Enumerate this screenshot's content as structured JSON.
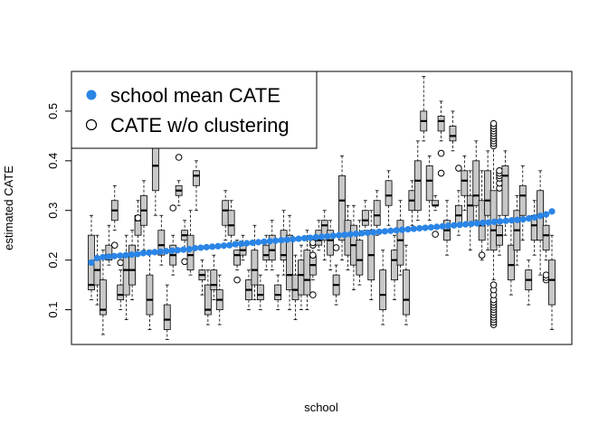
{
  "chart_data": {
    "type": "boxplot",
    "title": "",
    "xlabel": "school",
    "ylabel": "estimated CATE",
    "ylim": [
      0.03,
      0.58
    ],
    "yticks": [
      0.1,
      0.2,
      0.3,
      0.4,
      0.5
    ],
    "ytick_labels": [
      "0.1",
      "0.2",
      "0.3",
      "0.4",
      "0.5"
    ],
    "legend_position": "top-left",
    "colors": {
      "mean_points": "#2a85e6",
      "box_fill": "#c8c8c8",
      "outlier": "#000000"
    },
    "legend": [
      {
        "label": "school mean CATE",
        "marker": "filled-circle"
      },
      {
        "label": "CATE w/o clustering",
        "marker": "open-circle"
      }
    ],
    "series": [
      {
        "name": "school mean CATE",
        "kind": "points",
        "values": [
          0.195,
          0.204,
          0.206,
          0.207,
          0.208,
          0.209,
          0.21,
          0.211,
          0.212,
          0.214,
          0.215,
          0.216,
          0.217,
          0.218,
          0.219,
          0.22,
          0.221,
          0.222,
          0.224,
          0.225,
          0.226,
          0.227,
          0.228,
          0.229,
          0.23,
          0.232,
          0.233,
          0.234,
          0.235,
          0.236,
          0.237,
          0.238,
          0.239,
          0.24,
          0.241,
          0.242,
          0.243,
          0.244,
          0.245,
          0.246,
          0.247,
          0.248,
          0.249,
          0.25,
          0.251,
          0.252,
          0.253,
          0.254,
          0.255,
          0.256,
          0.257,
          0.258,
          0.259,
          0.26,
          0.261,
          0.262,
          0.263,
          0.264,
          0.265,
          0.266,
          0.267,
          0.268,
          0.269,
          0.27,
          0.271,
          0.272,
          0.273,
          0.274,
          0.275,
          0.276,
          0.277,
          0.278,
          0.279,
          0.28,
          0.281,
          0.282,
          0.284,
          0.286,
          0.289,
          0.292,
          0.298
        ]
      },
      {
        "name": "CATE w/o clustering",
        "kind": "boxes",
        "boxes": [
          {
            "min": 0.12,
            "q1": 0.14,
            "median": 0.15,
            "q3": 0.25,
            "max": 0.29,
            "outliers": []
          },
          {
            "min": 0.11,
            "q1": 0.15,
            "median": 0.18,
            "q3": 0.2,
            "max": 0.25,
            "outliers": []
          },
          {
            "min": 0.05,
            "q1": 0.09,
            "median": 0.1,
            "q3": 0.16,
            "max": 0.22,
            "outliers": []
          },
          {
            "min": 0.19,
            "q1": 0.2,
            "median": 0.21,
            "q3": 0.23,
            "max": 0.27,
            "outliers": []
          },
          {
            "min": 0.26,
            "q1": 0.28,
            "median": 0.3,
            "q3": 0.32,
            "max": 0.35,
            "outliers": [
              0.23
            ]
          },
          {
            "min": 0.1,
            "q1": 0.12,
            "median": 0.13,
            "q3": 0.15,
            "max": 0.18,
            "outliers": [
              0.195
            ]
          },
          {
            "min": 0.08,
            "q1": 0.13,
            "median": 0.18,
            "q3": 0.21,
            "max": 0.25,
            "outliers": []
          },
          {
            "min": 0.12,
            "q1": 0.15,
            "median": 0.18,
            "q3": 0.23,
            "max": 0.26,
            "outliers": []
          },
          {
            "min": 0.22,
            "q1": 0.25,
            "median": 0.28,
            "q3": 0.29,
            "max": 0.32,
            "outliers": [
              0.285
            ]
          },
          {
            "min": 0.22,
            "q1": 0.27,
            "median": 0.3,
            "q3": 0.33,
            "max": 0.36,
            "outliers": []
          },
          {
            "min": 0.06,
            "q1": 0.09,
            "median": 0.12,
            "q3": 0.17,
            "max": 0.22,
            "outliers": []
          },
          {
            "min": 0.29,
            "q1": 0.34,
            "median": 0.39,
            "q3": 0.45,
            "max": 0.5,
            "outliers": []
          },
          {
            "min": 0.19,
            "q1": 0.21,
            "median": 0.23,
            "q3": 0.26,
            "max": 0.29,
            "outliers": []
          },
          {
            "min": 0.04,
            "q1": 0.06,
            "median": 0.08,
            "q3": 0.11,
            "max": 0.15,
            "outliers": []
          },
          {
            "min": 0.17,
            "q1": 0.19,
            "median": 0.21,
            "q3": 0.23,
            "max": 0.25,
            "outliers": [
              0.305
            ]
          },
          {
            "min": 0.31,
            "q1": 0.33,
            "median": 0.34,
            "q3": 0.35,
            "max": 0.36,
            "outliers": [
              0.407
            ]
          },
          {
            "min": 0.22,
            "q1": 0.24,
            "median": 0.25,
            "q3": 0.26,
            "max": 0.28,
            "outliers": [
              0.197
            ]
          },
          {
            "min": 0.17,
            "q1": 0.18,
            "median": 0.21,
            "q3": 0.25,
            "max": 0.3,
            "outliers": []
          },
          {
            "min": 0.3,
            "q1": 0.35,
            "median": 0.37,
            "q3": 0.38,
            "max": 0.4,
            "outliers": []
          },
          {
            "min": 0.13,
            "q1": 0.16,
            "median": 0.17,
            "q3": 0.18,
            "max": 0.2,
            "outliers": []
          },
          {
            "min": 0.07,
            "q1": 0.09,
            "median": 0.1,
            "q3": 0.15,
            "max": 0.18,
            "outliers": []
          },
          {
            "min": 0.12,
            "q1": 0.14,
            "median": 0.15,
            "q3": 0.18,
            "max": 0.21,
            "outliers": []
          },
          {
            "min": 0.07,
            "q1": 0.1,
            "median": 0.12,
            "q3": 0.14,
            "max": 0.17,
            "outliers": []
          },
          {
            "min": 0.24,
            "q1": 0.27,
            "median": 0.3,
            "q3": 0.32,
            "max": 0.34,
            "outliers": []
          },
          {
            "min": 0.23,
            "q1": 0.25,
            "median": 0.27,
            "q3": 0.3,
            "max": 0.32,
            "outliers": []
          },
          {
            "min": 0.18,
            "q1": 0.19,
            "median": 0.21,
            "q3": 0.22,
            "max": 0.24,
            "outliers": [
              0.16
            ]
          },
          {
            "min": 0.2,
            "q1": 0.21,
            "median": 0.22,
            "q3": 0.23,
            "max": 0.25,
            "outliers": []
          },
          {
            "min": 0.1,
            "q1": 0.12,
            "median": 0.14,
            "q3": 0.16,
            "max": 0.18,
            "outliers": []
          },
          {
            "min": 0.12,
            "q1": 0.15,
            "median": 0.18,
            "q3": 0.22,
            "max": 0.27,
            "outliers": []
          },
          {
            "min": 0.1,
            "q1": 0.12,
            "median": 0.13,
            "q3": 0.15,
            "max": 0.17,
            "outliers": []
          },
          {
            "min": 0.18,
            "q1": 0.2,
            "median": 0.21,
            "q3": 0.23,
            "max": 0.25,
            "outliers": []
          },
          {
            "min": 0.18,
            "q1": 0.2,
            "median": 0.22,
            "q3": 0.25,
            "max": 0.28,
            "outliers": []
          },
          {
            "min": 0.1,
            "q1": 0.12,
            "median": 0.13,
            "q3": 0.15,
            "max": 0.17,
            "outliers": []
          },
          {
            "min": 0.17,
            "q1": 0.2,
            "median": 0.21,
            "q3": 0.26,
            "max": 0.3,
            "outliers": []
          },
          {
            "min": 0.1,
            "q1": 0.14,
            "median": 0.17,
            "q3": 0.25,
            "max": 0.29,
            "outliers": []
          },
          {
            "min": 0.08,
            "q1": 0.12,
            "median": 0.14,
            "q3": 0.17,
            "max": 0.21,
            "outliers": []
          },
          {
            "min": 0.1,
            "q1": 0.13,
            "median": 0.17,
            "q3": 0.2,
            "max": 0.23,
            "outliers": []
          },
          {
            "min": 0.1,
            "q1": 0.13,
            "median": 0.16,
            "q3": 0.22,
            "max": 0.26,
            "outliers": []
          },
          {
            "min": 0.16,
            "q1": 0.17,
            "median": 0.19,
            "q3": 0.21,
            "max": 0.23,
            "outliers": [
              0.13,
              0.21,
              0.23,
              0.235
            ]
          },
          {
            "min": 0.22,
            "q1": 0.23,
            "median": 0.24,
            "q3": 0.26,
            "max": 0.28,
            "outliers": []
          },
          {
            "min": 0.2,
            "q1": 0.24,
            "median": 0.27,
            "q3": 0.28,
            "max": 0.3,
            "outliers": []
          },
          {
            "min": 0.18,
            "q1": 0.21,
            "median": 0.24,
            "q3": 0.26,
            "max": 0.28,
            "outliers": []
          },
          {
            "min": 0.11,
            "q1": 0.13,
            "median": 0.15,
            "q3": 0.17,
            "max": 0.19,
            "outliers": [
              0.225
            ]
          },
          {
            "min": 0.2,
            "q1": 0.24,
            "median": 0.32,
            "q3": 0.37,
            "max": 0.41,
            "outliers": []
          },
          {
            "min": 0.18,
            "q1": 0.21,
            "median": 0.25,
            "q3": 0.28,
            "max": 0.31,
            "outliers": []
          },
          {
            "min": 0.14,
            "q1": 0.19,
            "median": 0.23,
            "q3": 0.27,
            "max": 0.31,
            "outliers": []
          },
          {
            "min": 0.15,
            "q1": 0.17,
            "median": 0.2,
            "q3": 0.24,
            "max": 0.28,
            "outliers": []
          },
          {
            "min": 0.26,
            "q1": 0.27,
            "median": 0.28,
            "q3": 0.3,
            "max": 0.32,
            "outliers": []
          },
          {
            "min": 0.12,
            "q1": 0.16,
            "median": 0.21,
            "q3": 0.26,
            "max": 0.3,
            "outliers": []
          },
          {
            "min": 0.25,
            "q1": 0.27,
            "median": 0.29,
            "q3": 0.32,
            "max": 0.34,
            "outliers": []
          },
          {
            "min": 0.07,
            "q1": 0.1,
            "median": 0.13,
            "q3": 0.18,
            "max": 0.22,
            "outliers": []
          },
          {
            "min": 0.27,
            "q1": 0.31,
            "median": 0.33,
            "q3": 0.36,
            "max": 0.38,
            "outliers": []
          },
          {
            "min": 0.12,
            "q1": 0.16,
            "median": 0.2,
            "q3": 0.22,
            "max": 0.25,
            "outliers": []
          },
          {
            "min": 0.17,
            "q1": 0.19,
            "median": 0.24,
            "q3": 0.28,
            "max": 0.32,
            "outliers": []
          },
          {
            "min": 0.07,
            "q1": 0.09,
            "median": 0.12,
            "q3": 0.18,
            "max": 0.23,
            "outliers": []
          },
          {
            "min": 0.27,
            "q1": 0.3,
            "median": 0.32,
            "q3": 0.34,
            "max": 0.36,
            "outliers": []
          },
          {
            "min": 0.28,
            "q1": 0.3,
            "median": 0.36,
            "q3": 0.4,
            "max": 0.44,
            "outliers": []
          },
          {
            "min": 0.44,
            "q1": 0.46,
            "median": 0.48,
            "q3": 0.5,
            "max": 0.57,
            "outliers": []
          },
          {
            "min": 0.28,
            "q1": 0.32,
            "median": 0.36,
            "q3": 0.39,
            "max": 0.41,
            "outliers": []
          },
          {
            "min": 0.3,
            "q1": 0.31,
            "median": 0.31,
            "q3": 0.32,
            "max": 0.33,
            "outliers": [
              0.252
            ]
          },
          {
            "min": 0.44,
            "q1": 0.46,
            "median": 0.48,
            "q3": 0.49,
            "max": 0.52,
            "outliers": [
              0.375,
              0.415
            ]
          },
          {
            "min": 0.21,
            "q1": 0.24,
            "median": 0.26,
            "q3": 0.28,
            "max": 0.32,
            "outliers": []
          },
          {
            "min": 0.42,
            "q1": 0.44,
            "median": 0.45,
            "q3": 0.47,
            "max": 0.5,
            "outliers": []
          },
          {
            "min": 0.25,
            "q1": 0.27,
            "median": 0.29,
            "q3": 0.31,
            "max": 0.34,
            "outliers": [
              0.385
            ]
          },
          {
            "min": 0.3,
            "q1": 0.33,
            "median": 0.36,
            "q3": 0.38,
            "max": 0.41,
            "outliers": []
          },
          {
            "min": 0.22,
            "q1": 0.27,
            "median": 0.31,
            "q3": 0.33,
            "max": 0.38,
            "outliers": []
          },
          {
            "min": 0.28,
            "q1": 0.31,
            "median": 0.33,
            "q3": 0.4,
            "max": 0.44,
            "outliers": []
          },
          {
            "min": 0.2,
            "q1": 0.24,
            "median": 0.27,
            "q3": 0.32,
            "max": 0.38,
            "outliers": [
              0.21
            ]
          },
          {
            "min": 0.22,
            "q1": 0.29,
            "median": 0.32,
            "q3": 0.38,
            "max": 0.42,
            "outliers": []
          },
          {
            "min": 0.16,
            "q1": 0.22,
            "median": 0.26,
            "q3": 0.34,
            "max": 0.45,
            "outliers": [
              0.07,
              0.075,
              0.08,
              0.085,
              0.09,
              0.095,
              0.1,
              0.105,
              0.11,
              0.115,
              0.12,
              0.13,
              0.14,
              0.15,
              0.43,
              0.435,
              0.44,
              0.445,
              0.45,
              0.455,
              0.46,
              0.465,
              0.47,
              0.475
            ]
          },
          {
            "min": 0.21,
            "q1": 0.23,
            "median": 0.25,
            "q3": 0.27,
            "max": 0.29,
            "outliers": [
              0.345,
              0.355,
              0.365,
              0.37,
              0.375,
              0.38
            ]
          },
          {
            "min": 0.25,
            "q1": 0.29,
            "median": 0.37,
            "q3": 0.39,
            "max": 0.42,
            "outliers": []
          },
          {
            "min": 0.13,
            "q1": 0.16,
            "median": 0.19,
            "q3": 0.23,
            "max": 0.28,
            "outliers": []
          },
          {
            "min": 0.19,
            "q1": 0.22,
            "median": 0.26,
            "q3": 0.3,
            "max": 0.33,
            "outliers": []
          },
          {
            "min": 0.24,
            "q1": 0.29,
            "median": 0.33,
            "q3": 0.35,
            "max": 0.39,
            "outliers": []
          },
          {
            "min": 0.11,
            "q1": 0.14,
            "median": 0.16,
            "q3": 0.18,
            "max": 0.2,
            "outliers": []
          },
          {
            "min": 0.21,
            "q1": 0.24,
            "median": 0.27,
            "q3": 0.29,
            "max": 0.32,
            "outliers": []
          },
          {
            "min": 0.17,
            "q1": 0.24,
            "median": 0.29,
            "q3": 0.34,
            "max": 0.38,
            "outliers": []
          },
          {
            "min": 0.2,
            "q1": 0.22,
            "median": 0.25,
            "q3": 0.27,
            "max": 0.29,
            "outliers": [
              0.16,
              0.165,
              0.17
            ]
          },
          {
            "min": 0.06,
            "q1": 0.11,
            "median": 0.16,
            "q3": 0.2,
            "max": 0.25,
            "outliers": []
          }
        ]
      }
    ]
  }
}
